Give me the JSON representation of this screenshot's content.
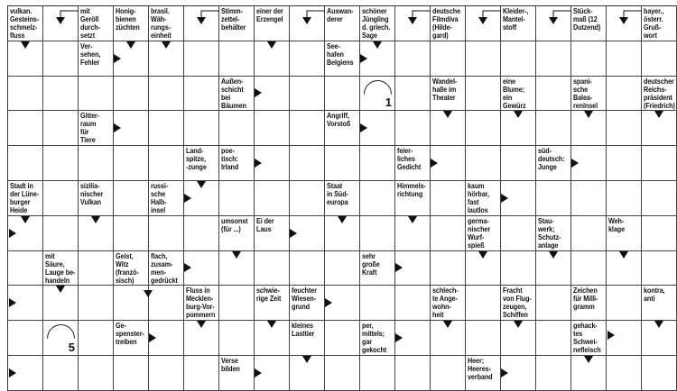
{
  "puzzle": {
    "type": "Schwedenrätsel",
    "rows": [
      [
        {
          "clue": "vulkan.\nGesteins-\nschmelz-\nfluss",
          "arrow": "down"
        },
        {
          "arrow": "corner"
        },
        {
          "clue": "mit\nGeröll\ndurch-\nsetzt"
        },
        {
          "clue": "Honig-\nbienen\nzüchten",
          "arrow": "down"
        },
        {
          "clue": "brasil.\nWäh-\nrungs-\neinheit",
          "arrow": "down"
        },
        {
          "arrow": "corner"
        },
        {
          "clue": "Stimm-\nzettel-\nbehälter"
        },
        {
          "clue": "einer der\nErzengel",
          "arrow": "down"
        },
        {
          "arrow": "corner"
        },
        {
          "clue": "Auswan-\nderer"
        },
        {
          "clue": "schöner\nJüngling\nd. griech.\nSage",
          "arrow": "down"
        },
        {
          "arrow": "corner"
        },
        {
          "clue": "deutsche\nFilmdiva\n(Hilde-\ngard)"
        },
        {
          "arrow": "corner"
        },
        {
          "clue": "Kleider-,\nMantel-\nstoff"
        },
        {
          "arrow": "corner"
        },
        {
          "clue": "Stück-\nmaß (12\nDutzend)"
        },
        {
          "arrow": "corner"
        },
        {
          "clue": "bayer.,\nösterr.\nGruß-\nwort"
        }
      ],
      [
        null,
        null,
        {
          "clue": "Ver-\nsehen,\nFehler",
          "arrow": "right"
        },
        null,
        null,
        null,
        null,
        null,
        null,
        {
          "clue": "See-\nhafen\nBelgiens",
          "arrow": "right"
        },
        null,
        null,
        null,
        null,
        null,
        null,
        null,
        null,
        null
      ],
      [
        null,
        null,
        null,
        null,
        null,
        null,
        {
          "clue": "Außen-\nschicht\nbei\nBäumen",
          "arrow": "right"
        },
        null,
        null,
        null,
        {
          "circle": "1"
        },
        null,
        {
          "clue": "Wandel-\nhalle im\nTheater",
          "arrow": "down"
        },
        null,
        {
          "clue": "eine\nBlume;\nein\nGewürz",
          "arrow": "down"
        },
        null,
        {
          "clue": "spani-\nsche\nBalea-\nreninsel",
          "arrow": "down"
        },
        null,
        {
          "clue": "deutscher\nReichs-\npräsident\n(Friedrich)",
          "arrow": "down"
        }
      ],
      [
        null,
        null,
        {
          "clue": "Gitter-\nraum\nfür\nTiere",
          "arrow": "right"
        },
        null,
        null,
        null,
        null,
        null,
        null,
        {
          "clue": "Angriff,\nVorstoß",
          "arrow": "right"
        },
        null,
        null,
        null,
        null,
        null,
        null,
        null,
        null,
        null
      ],
      [
        null,
        null,
        null,
        null,
        null,
        {
          "clue": "Land-\nspitze,\n-zunge",
          "arrow": "down"
        },
        {
          "clue": "poe-\ntisch:\nIrland",
          "arrow": "right"
        },
        null,
        null,
        null,
        null,
        {
          "clue": "feier-\nliches\nGedicht",
          "arrow": "right"
        },
        null,
        null,
        null,
        {
          "clue": "süd-\ndeutsch:\nJunge",
          "arrow": "right"
        },
        null,
        null,
        null
      ],
      [
        {
          "clue": "Stadt in\nder Lüne-\nburger\nHeide",
          "arrow": "down"
        },
        null,
        {
          "clue": "sizilia-\nnischer\nVulkan",
          "arrow": "down"
        },
        null,
        {
          "clue": "russi-\nsche\nHalb-\ninsel",
          "arrow": "right"
        },
        null,
        null,
        null,
        null,
        {
          "clue": "Staat\nin Süd-\neuropa",
          "arrow": "down"
        },
        null,
        {
          "clue": "Himmels-\nrichtung",
          "arrow": "down"
        },
        null,
        {
          "clue": "kaum\nhörbar,\nfast\nlautlos",
          "arrow": "right"
        },
        null,
        null,
        null,
        null,
        null
      ],
      [
        {
          "arrow": "right-edge"
        },
        null,
        null,
        null,
        null,
        null,
        {
          "clue": "umsonst\n(für ...)",
          "arrow": "down"
        },
        {
          "clue": "Ei der\nLaus",
          "arrow": "right"
        },
        null,
        null,
        null,
        null,
        null,
        {
          "clue": "germa-\nnischer\nWurf-\nspieß",
          "arrow": "down"
        },
        null,
        {
          "clue": "Stau-\nwerk;\nSchutz-\nanlage",
          "arrow": "down"
        },
        null,
        {
          "clue": "Weh-\nklage",
          "arrow": "down"
        },
        null
      ],
      [
        null,
        {
          "clue": "mit\nSäure,\nLauge be-\nhandeln",
          "arrow": "down"
        },
        null,
        {
          "clue": "Geist,\nWitz\n(franzö-\nsisch)",
          "arrow": "bent-down"
        },
        {
          "clue": "flach,\nzusam-\nmen-\ngedrückt",
          "arrow": "right"
        },
        null,
        null,
        null,
        null,
        null,
        {
          "clue": "sehr\ngroße\nKraft",
          "arrow": "right"
        },
        null,
        null,
        null,
        null,
        null,
        null,
        null,
        null
      ],
      [
        {
          "arrow": "right-edge"
        },
        null,
        null,
        null,
        null,
        {
          "clue": "Fluss in\nMecklen-\nburg-Vor-\npommern",
          "arrow": "down"
        },
        null,
        {
          "clue": "schwie-\nrige Zeit",
          "arrow": "down"
        },
        {
          "clue": "feuchter\nWiesen-\ngrund",
          "arrow": "right"
        },
        null,
        null,
        null,
        {
          "clue": "schlech-\nte Ange-\nwohn-\nheit",
          "arrow": "down"
        },
        null,
        {
          "clue": "Fracht\nvon Flug-\nzeugen,\nSchiffen",
          "arrow": "down"
        },
        null,
        {
          "clue": "Zeichen\nfür Milli-\ngramm",
          "arrow": "bent-right"
        },
        null,
        {
          "clue": "kontra,\nanti",
          "arrow": "down"
        }
      ],
      [
        null,
        {
          "circle": "5"
        },
        null,
        {
          "clue": "Ge-\nspenster-\ntreiben",
          "arrow": "right"
        },
        null,
        null,
        null,
        null,
        {
          "clue": "kleines\nLasttier",
          "arrow": "down"
        },
        null,
        {
          "clue": "per,\nmittels;\ngar\ngekocht",
          "arrow": "right"
        },
        null,
        null,
        null,
        null,
        null,
        {
          "clue": "gehack-\ntes\nSchwei-\nnefleisch",
          "arrow": "down"
        },
        null,
        null
      ],
      [
        {
          "arrow": "right-edge"
        },
        null,
        null,
        null,
        null,
        null,
        {
          "clue": "Verse\nbilden",
          "arrow": "right"
        },
        null,
        null,
        null,
        null,
        null,
        null,
        {
          "clue": "Heer;\nHeeres-\nverband",
          "arrow": "right"
        },
        null,
        null,
        null,
        null,
        null
      ]
    ]
  }
}
